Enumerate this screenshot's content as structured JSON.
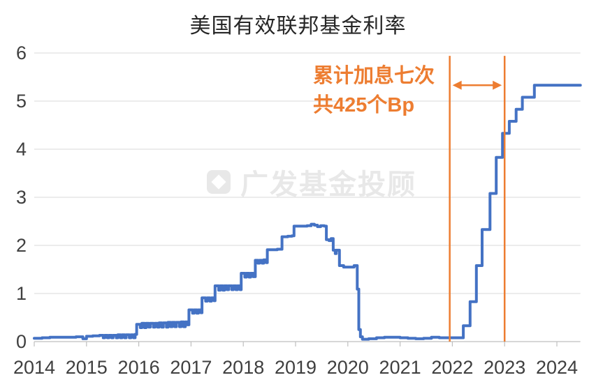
{
  "page": {
    "background": "#ffffff"
  },
  "chart_data": {
    "type": "line",
    "title": "美国有效联邦基金利率",
    "xlabel": "",
    "ylabel": "",
    "xlim": [
      2014,
      2024.45
    ],
    "ylim": [
      0,
      6
    ],
    "grid": "horizontal",
    "legend": "none",
    "gridline_color": "#d9d9d9",
    "axis_color": "#bfbfbf",
    "tick_label_color": "#3f3f3f",
    "x_ticks": [
      {
        "value": 2014,
        "label": "2014"
      },
      {
        "value": 2015,
        "label": "2015"
      },
      {
        "value": 2016,
        "label": "2016"
      },
      {
        "value": 2017,
        "label": "2017"
      },
      {
        "value": 2018,
        "label": "2018"
      },
      {
        "value": 2019,
        "label": "2019"
      },
      {
        "value": 2020,
        "label": "2020"
      },
      {
        "value": 2021,
        "label": "2021"
      },
      {
        "value": 2022,
        "label": "2022"
      },
      {
        "value": 2023,
        "label": "2023"
      },
      {
        "value": 2024,
        "label": "2024"
      }
    ],
    "y_ticks": [
      {
        "value": 0,
        "label": "0"
      },
      {
        "value": 1,
        "label": "1"
      },
      {
        "value": 2,
        "label": "2"
      },
      {
        "value": 3,
        "label": "3"
      },
      {
        "value": 4,
        "label": "4"
      },
      {
        "value": 5,
        "label": "5"
      },
      {
        "value": 6,
        "label": "6"
      }
    ],
    "series": [
      {
        "name": "美国有效联邦基金利率",
        "color": "#4472c4",
        "line_width": 4,
        "interpolation": "step-after",
        "points": [
          [
            2014.0,
            0.07
          ],
          [
            2014.15,
            0.08
          ],
          [
            2014.3,
            0.09
          ],
          [
            2014.55,
            0.09
          ],
          [
            2014.8,
            0.1
          ],
          [
            2014.93,
            0.06
          ],
          [
            2015.0,
            0.11
          ],
          [
            2015.12,
            0.12
          ],
          [
            2015.25,
            0.13
          ],
          [
            2015.32,
            0.08
          ],
          [
            2015.35,
            0.13
          ],
          [
            2015.4,
            0.08
          ],
          [
            2015.43,
            0.13
          ],
          [
            2015.48,
            0.08
          ],
          [
            2015.51,
            0.13
          ],
          [
            2015.57,
            0.08
          ],
          [
            2015.6,
            0.14
          ],
          [
            2015.65,
            0.08
          ],
          [
            2015.68,
            0.14
          ],
          [
            2015.73,
            0.08
          ],
          [
            2015.76,
            0.14
          ],
          [
            2015.82,
            0.08
          ],
          [
            2015.85,
            0.14
          ],
          [
            2015.9,
            0.08
          ],
          [
            2015.93,
            0.15
          ],
          [
            2015.96,
            0.36
          ],
          [
            2016.03,
            0.29
          ],
          [
            2016.06,
            0.38
          ],
          [
            2016.11,
            0.29
          ],
          [
            2016.14,
            0.38
          ],
          [
            2016.19,
            0.3
          ],
          [
            2016.22,
            0.38
          ],
          [
            2016.28,
            0.3
          ],
          [
            2016.31,
            0.38
          ],
          [
            2016.36,
            0.3
          ],
          [
            2016.39,
            0.39
          ],
          [
            2016.44,
            0.3
          ],
          [
            2016.47,
            0.39
          ],
          [
            2016.53,
            0.3
          ],
          [
            2016.56,
            0.4
          ],
          [
            2016.61,
            0.31
          ],
          [
            2016.64,
            0.4
          ],
          [
            2016.69,
            0.31
          ],
          [
            2016.72,
            0.4
          ],
          [
            2016.78,
            0.31
          ],
          [
            2016.81,
            0.41
          ],
          [
            2016.86,
            0.31
          ],
          [
            2016.89,
            0.41
          ],
          [
            2016.93,
            0.35
          ],
          [
            2016.96,
            0.66
          ],
          [
            2017.03,
            0.59
          ],
          [
            2017.06,
            0.66
          ],
          [
            2017.11,
            0.59
          ],
          [
            2017.14,
            0.66
          ],
          [
            2017.19,
            0.6
          ],
          [
            2017.21,
            0.91
          ],
          [
            2017.28,
            0.84
          ],
          [
            2017.31,
            0.91
          ],
          [
            2017.36,
            0.84
          ],
          [
            2017.39,
            0.91
          ],
          [
            2017.44,
            0.85
          ],
          [
            2017.46,
            1.16
          ],
          [
            2017.53,
            1.07
          ],
          [
            2017.56,
            1.16
          ],
          [
            2017.61,
            1.07
          ],
          [
            2017.64,
            1.16
          ],
          [
            2017.69,
            1.08
          ],
          [
            2017.72,
            1.16
          ],
          [
            2017.78,
            1.08
          ],
          [
            2017.81,
            1.16
          ],
          [
            2017.86,
            1.08
          ],
          [
            2017.89,
            1.16
          ],
          [
            2017.94,
            1.08
          ],
          [
            2017.96,
            1.42
          ],
          [
            2018.03,
            1.34
          ],
          [
            2018.06,
            1.42
          ],
          [
            2018.11,
            1.34
          ],
          [
            2018.14,
            1.42
          ],
          [
            2018.19,
            1.35
          ],
          [
            2018.23,
            1.69
          ],
          [
            2018.28,
            1.63
          ],
          [
            2018.31,
            1.69
          ],
          [
            2018.36,
            1.63
          ],
          [
            2018.39,
            1.7
          ],
          [
            2018.44,
            1.64
          ],
          [
            2018.46,
            1.91
          ],
          [
            2018.56,
            1.91
          ],
          [
            2018.65,
            1.92
          ],
          [
            2018.74,
            2.18
          ],
          [
            2018.85,
            2.19
          ],
          [
            2018.93,
            2.2
          ],
          [
            2018.97,
            2.4
          ],
          [
            2019.1,
            2.4
          ],
          [
            2019.22,
            2.41
          ],
          [
            2019.3,
            2.44
          ],
          [
            2019.36,
            2.42
          ],
          [
            2019.42,
            2.39
          ],
          [
            2019.48,
            2.41
          ],
          [
            2019.55,
            2.4
          ],
          [
            2019.59,
            2.12
          ],
          [
            2019.64,
            2.1
          ],
          [
            2019.68,
            2.14
          ],
          [
            2019.72,
            1.9
          ],
          [
            2019.76,
            1.83
          ],
          [
            2019.78,
            1.9
          ],
          [
            2019.84,
            1.58
          ],
          [
            2019.92,
            1.55
          ],
          [
            2020.05,
            1.55
          ],
          [
            2020.12,
            1.58
          ],
          [
            2020.18,
            1.09
          ],
          [
            2020.21,
            0.25
          ],
          [
            2020.24,
            0.1
          ],
          [
            2020.28,
            0.05
          ],
          [
            2020.4,
            0.06
          ],
          [
            2020.55,
            0.08
          ],
          [
            2020.7,
            0.09
          ],
          [
            2020.85,
            0.09
          ],
          [
            2021.0,
            0.08
          ],
          [
            2021.15,
            0.07
          ],
          [
            2021.3,
            0.06
          ],
          [
            2021.45,
            0.07
          ],
          [
            2021.6,
            0.09
          ],
          [
            2021.75,
            0.08
          ],
          [
            2021.9,
            0.08
          ],
          [
            2022.05,
            0.08
          ],
          [
            2022.21,
            0.33
          ],
          [
            2022.34,
            0.83
          ],
          [
            2022.46,
            1.58
          ],
          [
            2022.57,
            2.33
          ],
          [
            2022.72,
            3.08
          ],
          [
            2022.84,
            3.83
          ],
          [
            2022.96,
            4.33
          ],
          [
            2023.09,
            4.58
          ],
          [
            2023.22,
            4.83
          ],
          [
            2023.34,
            5.08
          ],
          [
            2023.57,
            5.33
          ],
          [
            2024.45,
            5.33
          ]
        ]
      }
    ],
    "annotations": {
      "label_line1": "累计加息七次",
      "label_line2": "共425个Bp",
      "color": "#ed7d31",
      "vline_years": [
        2021.95,
        2023.0
      ],
      "vline_top_value": 5.94,
      "arrow_value": 5.33
    },
    "watermark": {
      "text": "广发基金投顾",
      "color": "#e8e8e8"
    }
  }
}
